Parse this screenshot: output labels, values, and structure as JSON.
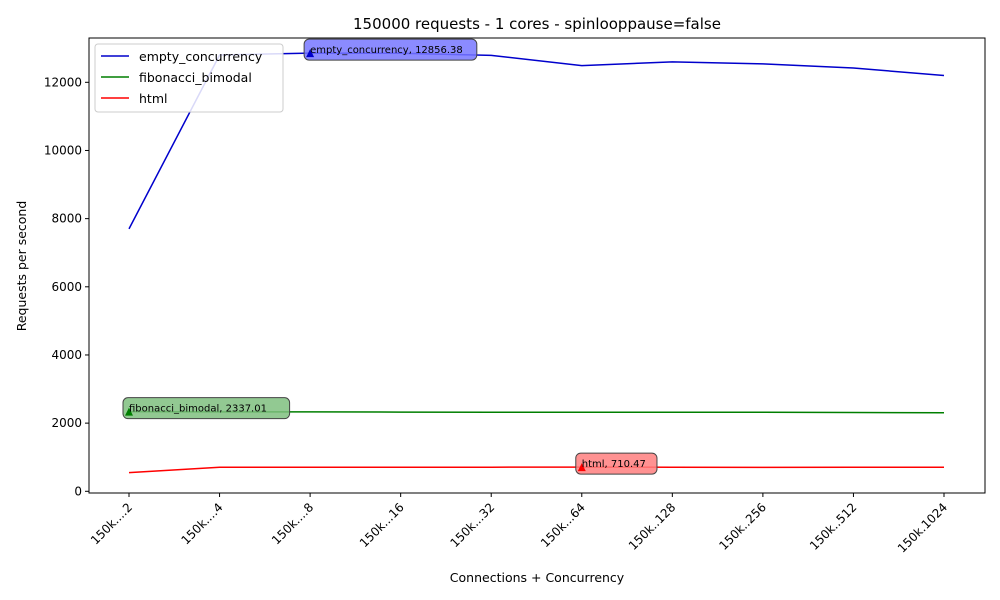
{
  "chart_data": {
    "type": "line",
    "title": "150000 requests - 1 cores - spinlooppause=false",
    "xlabel": "Connections + Concurrency",
    "ylabel": "Requests per second",
    "categories": [
      "150k....2",
      "150k....4",
      "150k....8",
      "150k...16",
      "150k...32",
      "150k...64",
      "150k..128",
      "150k..256",
      "150k..512",
      "150k.1024"
    ],
    "ylim": [
      -50,
      13300
    ],
    "yticks": [
      0,
      2000,
      4000,
      6000,
      8000,
      10000,
      12000
    ],
    "ytick_labels": [
      "0",
      "2000",
      "4000",
      "6000",
      "8000",
      "10000",
      "12000"
    ],
    "grid": false,
    "legend_position": "top-left",
    "series": [
      {
        "name": "empty_concurrency",
        "color": "#0000cc",
        "values": [
          7700,
          12800,
          12856.38,
          12850,
          12790,
          12490,
          12600,
          12540,
          12420,
          12200
        ]
      },
      {
        "name": "fibonacci_bimodal",
        "color": "#007f00",
        "values": [
          2337.01,
          2330,
          2330,
          2325,
          2320,
          2322,
          2322,
          2318,
          2312,
          2305
        ]
      },
      {
        "name": "html",
        "color": "#ff0000",
        "values": [
          550,
          705,
          705,
          705,
          706,
          710.47,
          706,
          700,
          708,
          706
        ]
      }
    ],
    "annotations": [
      {
        "series_index": 0,
        "x_index": 2,
        "value": 12856.38,
        "text": "empty_concurrency, 12856.38",
        "color": "#7777ff"
      },
      {
        "series_index": 1,
        "x_index": 0,
        "value": 2337.01,
        "text": "fibonacci_bimodal, 2337.01",
        "color": "#7fbf7f"
      },
      {
        "series_index": 2,
        "x_index": 5,
        "value": 710.47,
        "text": "html, 710.47",
        "color": "#ff7f7f"
      }
    ]
  }
}
